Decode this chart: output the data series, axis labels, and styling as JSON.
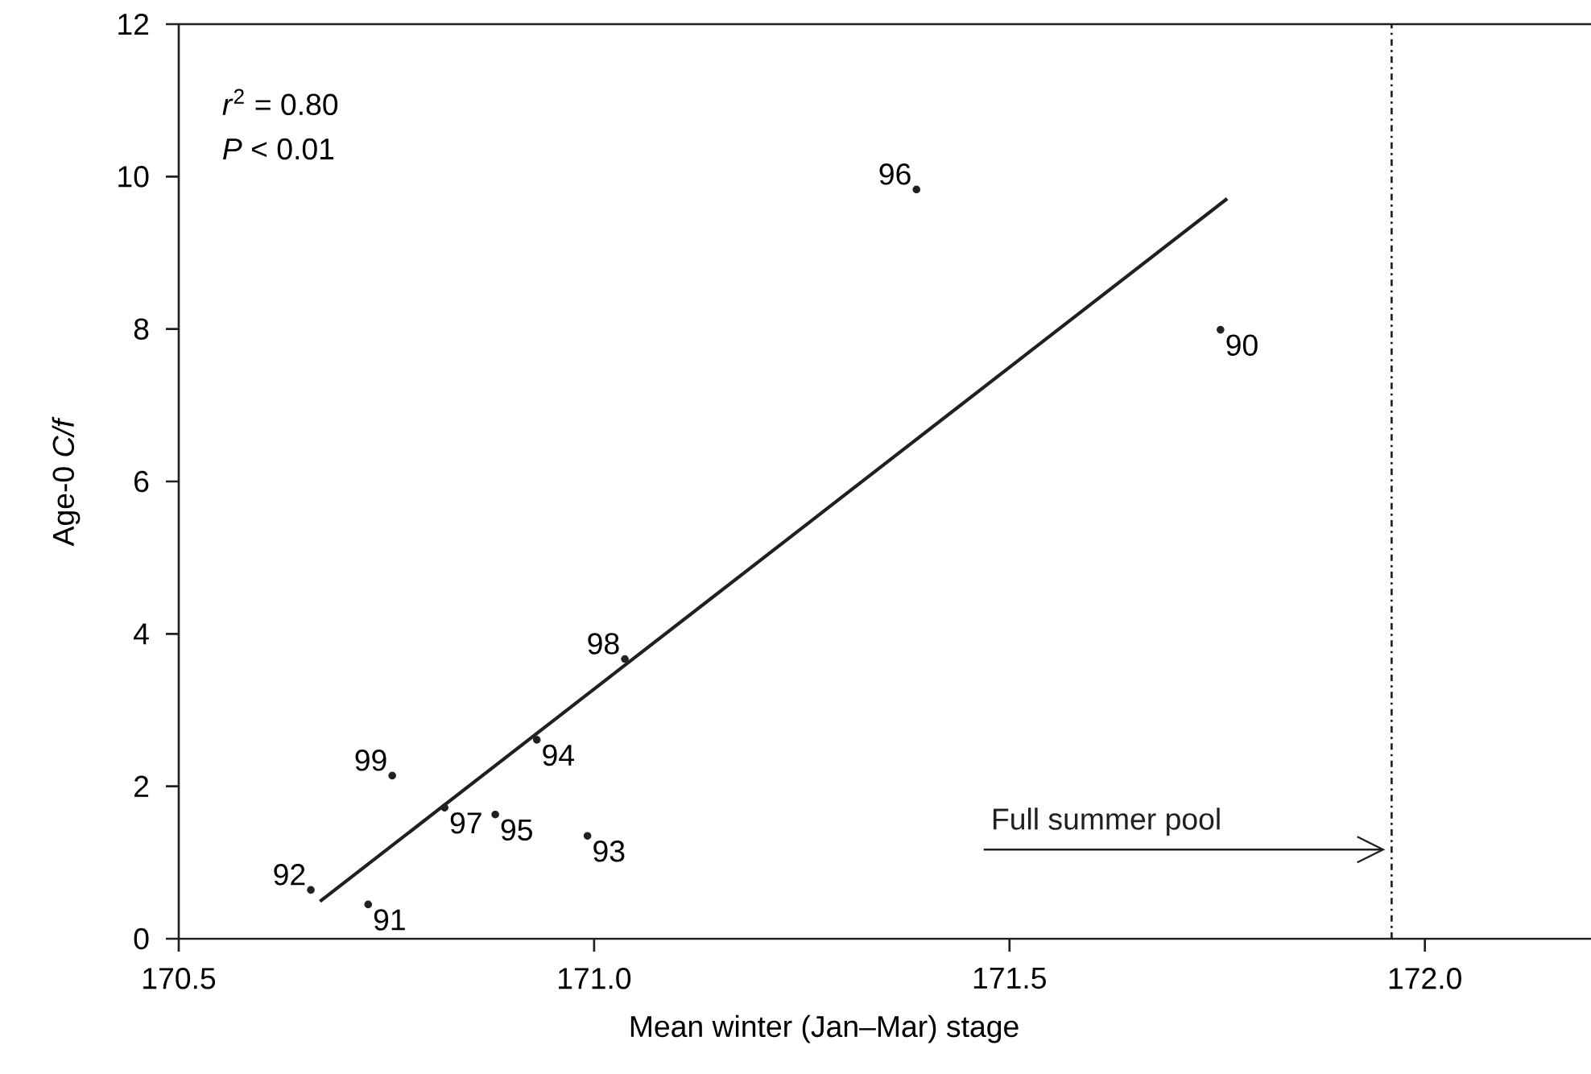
{
  "chart_data": {
    "type": "scatter",
    "xlabel": "Mean winter (Jan–Mar) stage",
    "ylabel": "Age-0 *C/f*",
    "xlim": [
      170.5,
      172.2
    ],
    "ylim": [
      0,
      12
    ],
    "xticks": [
      {
        "value": 170.5,
        "label": "170.5"
      },
      {
        "value": 171.0,
        "label": "171.0"
      },
      {
        "value": 171.5,
        "label": "171.5"
      },
      {
        "value": 172.0,
        "label": "172.0"
      }
    ],
    "yticks": [
      0,
      2,
      4,
      6,
      8,
      10,
      12
    ],
    "marker": "circle",
    "series": [
      {
        "color": "#231f20",
        "x": [
          171.754,
          170.728,
          170.659,
          170.992,
          170.931,
          170.881,
          171.388,
          170.82,
          171.037,
          170.757
        ],
        "values": [
          7.99,
          0.45,
          0.64,
          1.35,
          2.61,
          1.63,
          9.83,
          1.72,
          3.67,
          2.14
        ]
      },
      {
        "type": "line",
        "marker": "none",
        "color": "#231f20",
        "x": [
          170.67,
          171.762
        ],
        "values": [
          0.49,
          9.71
        ]
      }
    ],
    "ref_lines": [
      {
        "axis": "x",
        "value": 171.96,
        "line_style": "dashdotted",
        "color": "#231f20",
        "label": "Full summer pool"
      }
    ],
    "annotations": [
      "*r*$^{2}$ = 0.80",
      "*P* < 0.01",
      {
        "text": "90",
        "x": 171.754,
        "y": 7.99
      },
      {
        "text": "91",
        "x": 170.728,
        "y": 0.45
      },
      {
        "text": "92",
        "x": 170.659,
        "y": 0.64
      },
      {
        "text": "93",
        "x": 170.992,
        "y": 1.35
      },
      {
        "text": "94",
        "x": 170.931,
        "y": 2.61
      },
      {
        "text": "95",
        "x": 170.881,
        "y": 1.63
      },
      {
        "text": "96",
        "x": 171.388,
        "y": 9.83
      },
      {
        "text": "97",
        "x": 170.82,
        "y": 1.72
      },
      {
        "text": "98",
        "x": 171.037,
        "y": 3.67
      },
      {
        "text": "99",
        "x": 170.757,
        "y": 2.14
      }
    ]
  }
}
